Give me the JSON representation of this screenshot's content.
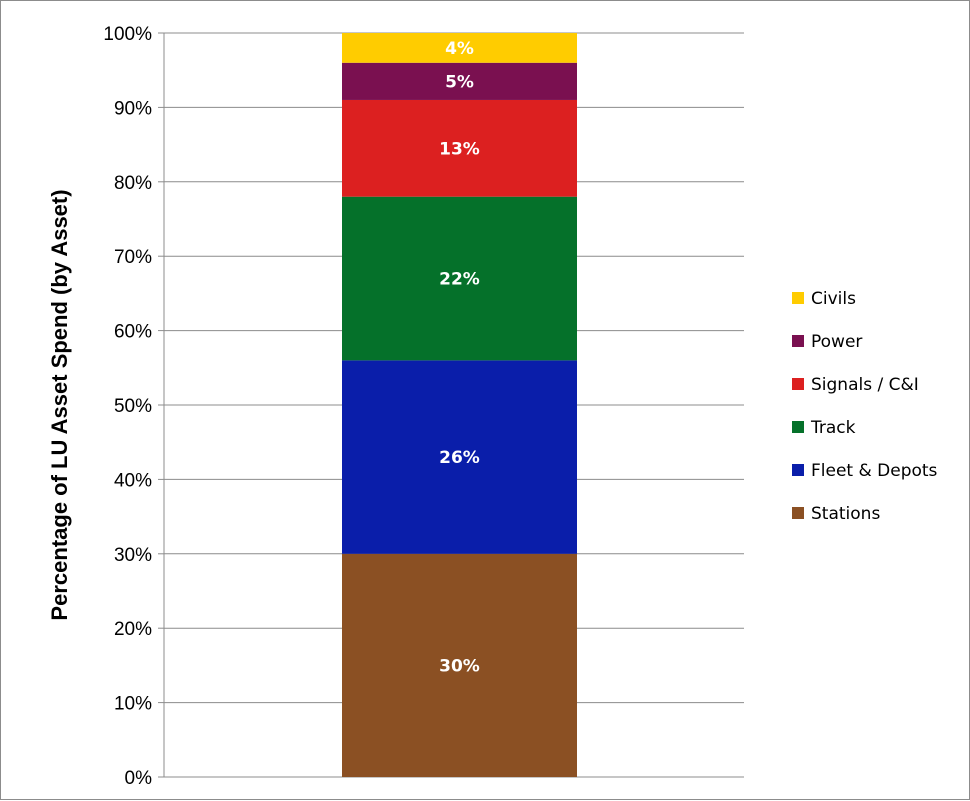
{
  "chart_data": {
    "type": "bar",
    "stacked": true,
    "ylabel": "Percentage of LU Asset Spend (by Asset)",
    "xlabel": "",
    "ylim": [
      0,
      100
    ],
    "yticks": [
      "0%",
      "10%",
      "20%",
      "30%",
      "40%",
      "50%",
      "60%",
      "70%",
      "80%",
      "90%",
      "100%"
    ],
    "grid": true,
    "legend_position": "right",
    "series": [
      {
        "name": "Stations",
        "value": 30,
        "label": "30%",
        "color": "#8b5023"
      },
      {
        "name": "Fleet & Depots",
        "value": 26,
        "label": "26%",
        "color": "#0a1eaa"
      },
      {
        "name": "Track",
        "value": 22,
        "label": "22%",
        "color": "#05712a"
      },
      {
        "name": "Signals / C&I",
        "value": 13,
        "label": "13%",
        "color": "#dc2020"
      },
      {
        "name": "Power",
        "value": 5,
        "label": "5%",
        "color": "#7a1050"
      },
      {
        "name": "Civils",
        "value": 4,
        "label": "4%",
        "color": "#ffcc00"
      }
    ]
  }
}
